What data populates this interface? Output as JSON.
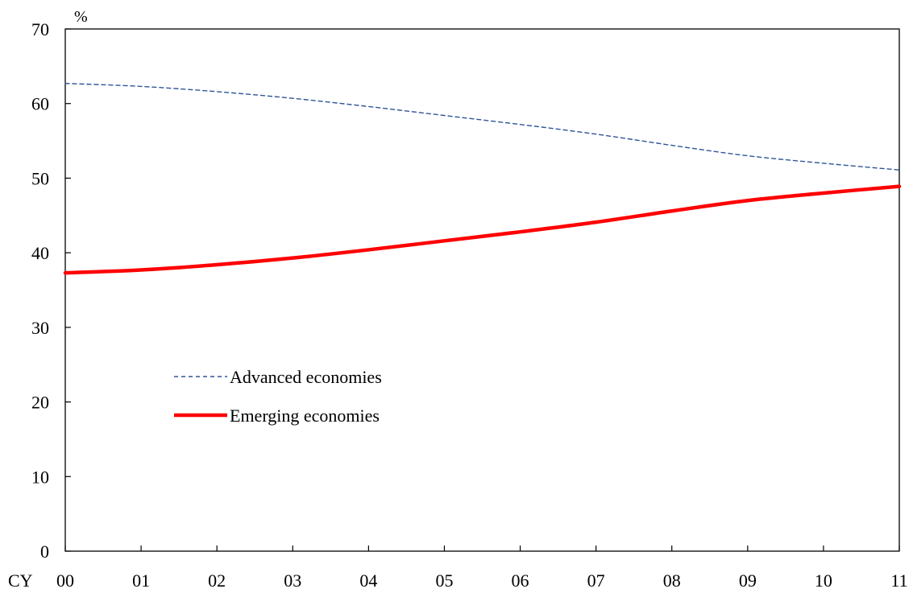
{
  "chart_data": {
    "type": "line",
    "title": "",
    "ylabel": "%",
    "xlabel": "",
    "x_prefix": "CY",
    "categories": [
      "00",
      "01",
      "02",
      "03",
      "04",
      "05",
      "06",
      "07",
      "08",
      "09",
      "10",
      "11"
    ],
    "ylim": [
      0,
      70
    ],
    "yticks": [
      0,
      10,
      20,
      30,
      40,
      50,
      60,
      70
    ],
    "grid": false,
    "legend_position": "center-left",
    "series": [
      {
        "name": "Advanced economies",
        "color": "#2F5597",
        "style": "dashed",
        "values": [
          62.7,
          62.3,
          61.6,
          60.7,
          59.6,
          58.4,
          57.2,
          55.9,
          54.4,
          53.0,
          52.0,
          51.1
        ]
      },
      {
        "name": "Emerging economies",
        "color": "#FF0000",
        "style": "solid",
        "values": [
          37.3,
          37.7,
          38.4,
          39.3,
          40.4,
          41.6,
          42.8,
          44.1,
          45.6,
          47.0,
          48.0,
          48.9
        ]
      }
    ]
  }
}
